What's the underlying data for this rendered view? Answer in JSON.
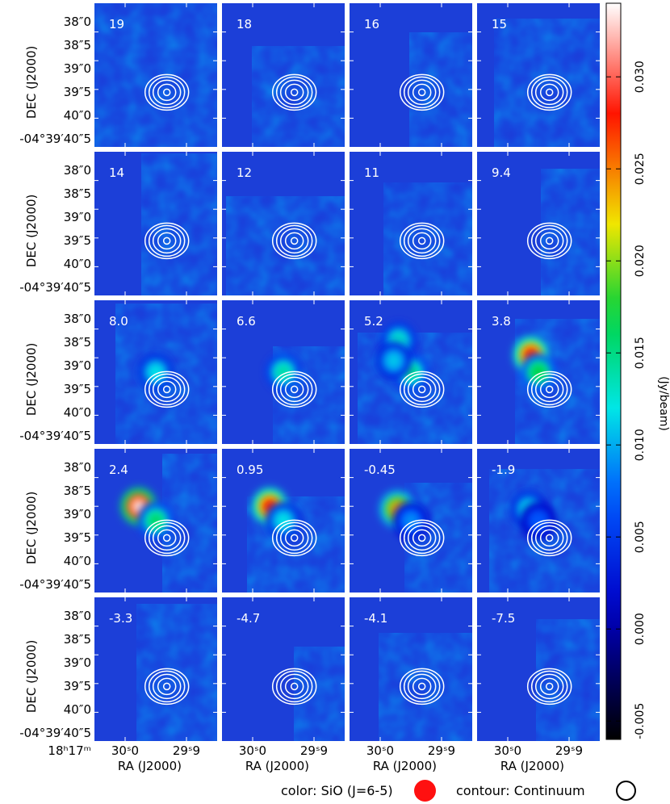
{
  "chart_data": {
    "type": "heatmap",
    "layout": {
      "rows": 5,
      "cols": 4
    },
    "panel_labels": [
      "19",
      "18",
      "16",
      "15",
      "14",
      "12",
      "11",
      "9.4",
      "8.0",
      "6.6",
      "5.2",
      "3.8",
      "2.4",
      "0.95",
      "-0.45",
      "-1.9",
      "-3.3",
      "-4.7",
      "-4.1",
      "-7.5"
    ],
    "ylabel": "DEC (J2000)",
    "xlabel": "RA (J2000)",
    "y_ticks": [
      "38″0",
      "38″5",
      "39″0",
      "39″5",
      "40″0",
      "-04°39′40″5"
    ],
    "x_ticks": [
      "30ˢ0",
      "29ˢ9"
    ],
    "x_tick_prefix": "18ʰ17ᵐ",
    "colorbar": {
      "label": "(Jy/beam)",
      "ticks": [
        "0.030",
        "0.025",
        "0.020",
        "0.015",
        "0.010",
        "0.005",
        "0.000",
        "-0.005"
      ],
      "range": [
        -0.006,
        0.034
      ],
      "tick_values": [
        0.03,
        0.025,
        0.02,
        0.015,
        0.01,
        0.005,
        0.0,
        -0.005
      ]
    },
    "emission": [
      [],
      [],
      [],
      [],
      [],
      [],
      [],
      [],
      [
        {
          "x": 0.5,
          "y": 0.5,
          "v": 0.012
        }
      ],
      [
        {
          "x": 0.5,
          "y": 0.5,
          "v": 0.014
        }
      ],
      [
        {
          "x": 0.5,
          "y": 0.5,
          "v": 0.015
        },
        {
          "x": 0.4,
          "y": 0.28,
          "v": 0.013
        },
        {
          "x": 0.36,
          "y": 0.42,
          "v": 0.011
        }
      ],
      [
        {
          "x": 0.44,
          "y": 0.38,
          "v": 0.028
        },
        {
          "x": 0.5,
          "y": 0.5,
          "v": 0.017
        }
      ],
      [
        {
          "x": 0.36,
          "y": 0.4,
          "v": 0.033
        },
        {
          "x": 0.5,
          "y": 0.5,
          "v": 0.016
        }
      ],
      [
        {
          "x": 0.39,
          "y": 0.4,
          "v": 0.028
        },
        {
          "x": 0.5,
          "y": 0.5,
          "v": 0.012
        }
      ],
      [
        {
          "x": 0.39,
          "y": 0.42,
          "v": 0.024
        },
        {
          "x": 0.5,
          "y": 0.5,
          "v": 0.009
        }
      ],
      [
        {
          "x": 0.42,
          "y": 0.42,
          "v": 0.012
        },
        {
          "x": 0.5,
          "y": 0.5,
          "v": 0.007
        }
      ],
      [],
      [],
      [],
      []
    ]
  },
  "legend": {
    "color_label": "color: SiO (J=6-5)",
    "contour_label": "contour: Continuum",
    "marker_color": "#ff1010"
  }
}
